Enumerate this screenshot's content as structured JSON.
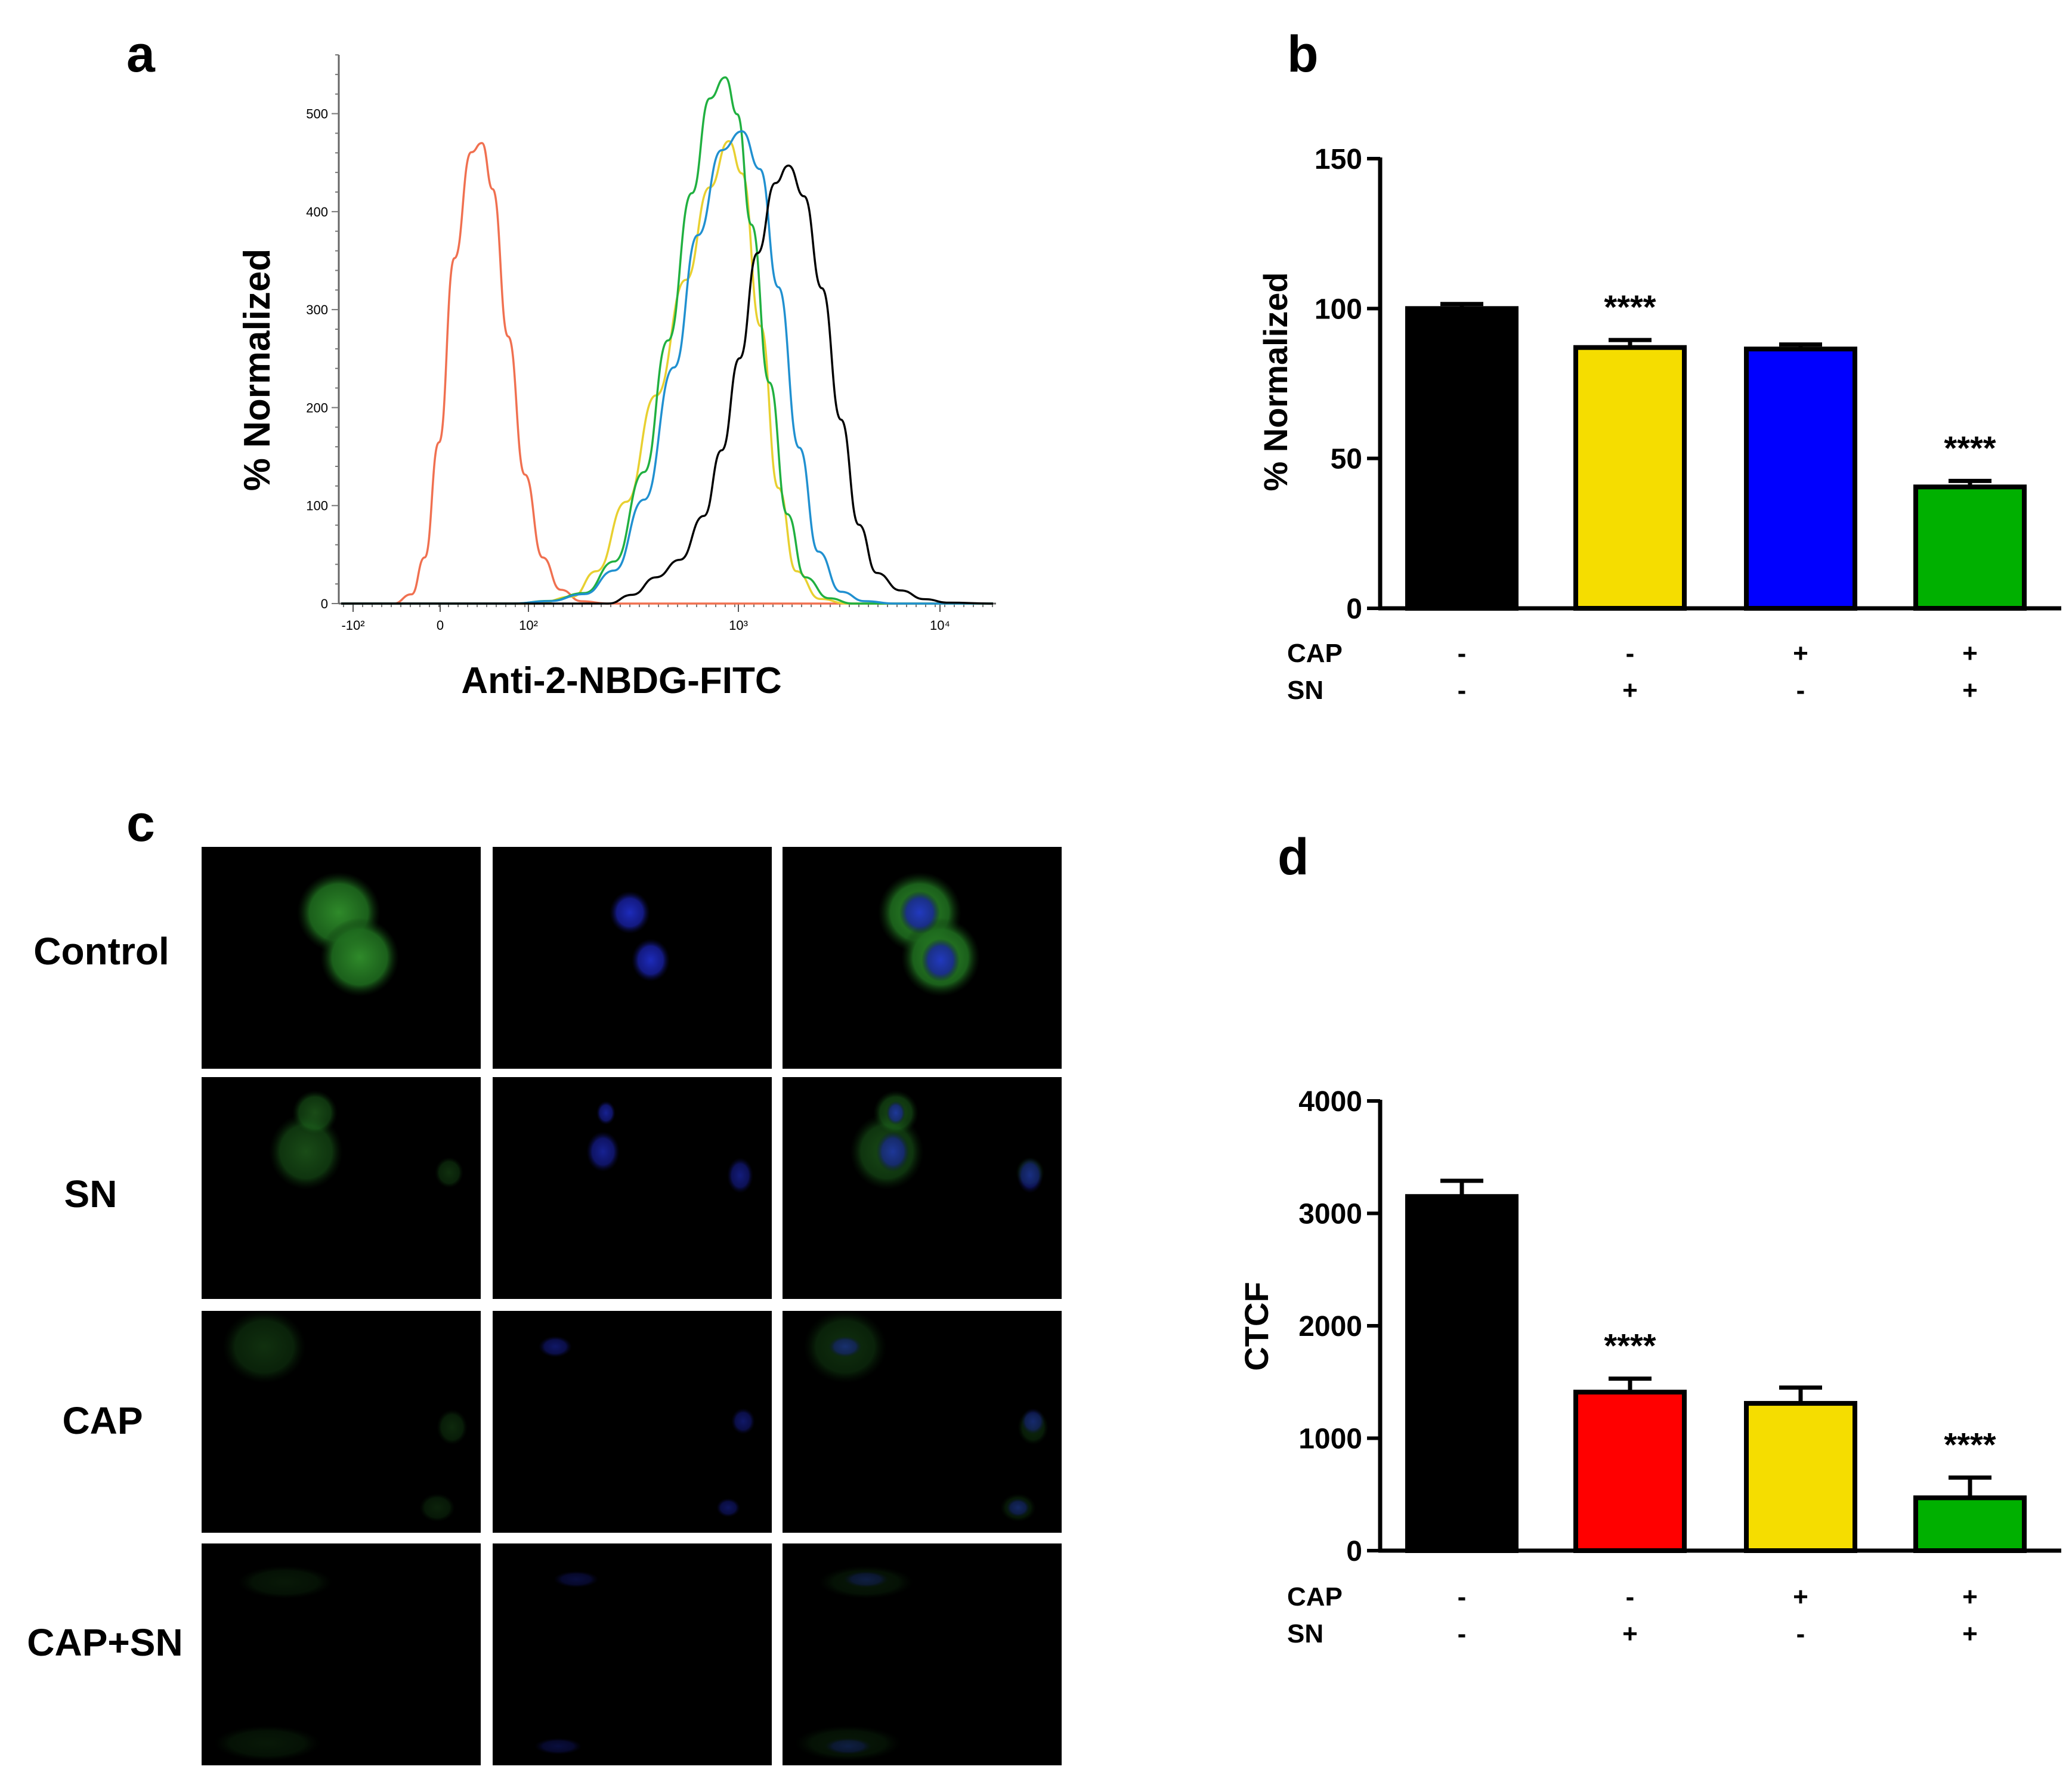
{
  "panels": {
    "a": "a",
    "b": "b",
    "c": "c",
    "d": "d"
  },
  "chart_data": [
    {
      "id": "a",
      "type": "line",
      "xlabel": "Anti-2-NBDG-FITC",
      "ylabel": "% Normalized",
      "x_ticks": [
        "-10²",
        "0",
        "10²",
        "10³",
        "10⁴"
      ],
      "y_ticks": [
        "0",
        "100",
        "200",
        "300",
        "400",
        "500"
      ],
      "ylim": [
        0,
        560
      ],
      "series": [
        {
          "color": "#f07050",
          "peak_y": 470
        },
        {
          "color": "#e8d030",
          "peak_y": 472
        },
        {
          "color": "#20b040",
          "peak_y": 537
        },
        {
          "color": "#2090d0",
          "peak_y": 482
        },
        {
          "color": "#000000",
          "peak_y": 447
        }
      ]
    },
    {
      "id": "b",
      "type": "bar",
      "ylabel": "% Normalized",
      "ylim": [
        0,
        150
      ],
      "y_ticks": [
        "0",
        "50",
        "100",
        "150"
      ],
      "values": [
        100,
        87,
        86.5,
        40.5
      ],
      "errors": [
        1.5,
        2.5,
        1.5,
        2
      ],
      "colors": [
        "#000000",
        "#f5dd00",
        "#0000ff",
        "#00b000"
      ],
      "significance": [
        "",
        "****",
        "",
        "****"
      ],
      "factors": [
        {
          "name": "CAP",
          "levels": [
            "-",
            "-",
            "+",
            "+"
          ]
        },
        {
          "name": "SN",
          "levels": [
            "-",
            "+",
            "-",
            "+"
          ]
        }
      ]
    },
    {
      "id": "d",
      "type": "bar",
      "ylabel": "CTCF",
      "ylim": [
        0,
        4000
      ],
      "y_ticks": [
        "0",
        "1000",
        "2000",
        "3000",
        "4000"
      ],
      "values": [
        3150,
        1410,
        1310,
        470
      ],
      "errors": [
        140,
        120,
        140,
        180
      ],
      "colors": [
        "#000000",
        "#ff0000",
        "#f5dd00",
        "#00b000"
      ],
      "significance": [
        "",
        "****",
        "",
        "****"
      ],
      "factors": [
        {
          "name": "CAP",
          "levels": [
            "-",
            "-",
            "+",
            "+"
          ]
        },
        {
          "name": "SN",
          "levels": [
            "-",
            "+",
            "-",
            "+"
          ]
        }
      ]
    }
  ],
  "micrographs": {
    "rows": [
      "Control",
      "SN",
      "CAP",
      "CAP+SN"
    ]
  }
}
